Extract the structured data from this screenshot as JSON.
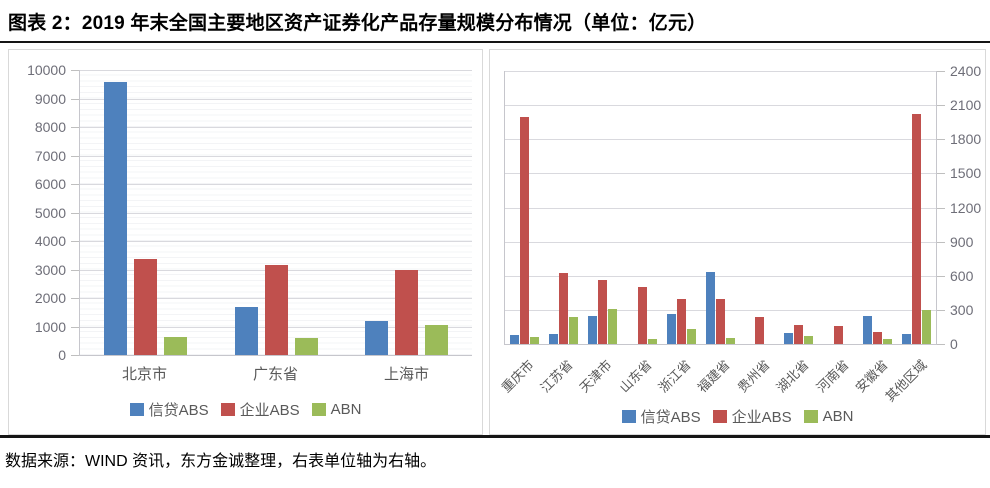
{
  "title": "图表 2：2019 年末全国主要地区资产证券化产品存量规模分布情况（单位：亿元）",
  "footer": "数据来源：WIND 资讯，东方金诚整理，右表单位轴为右轴。",
  "palette": {
    "credit_abs_blue": "#4E81BD",
    "enterprise_abs_red": "#C0504D",
    "abn_green": "#9BBB59",
    "axis_text": "#6E6E78",
    "category_text": "#595959",
    "gridline": "#D9D9DE",
    "divider_black": "#151515"
  },
  "chart_data": [
    {
      "type": "bar",
      "title": "",
      "axis_side": "left",
      "categories": [
        "北京市",
        "广东省",
        "上海市"
      ],
      "series": [
        {
          "key": "credit-abs",
          "name": "信贷ABS",
          "color": "#4E81BD",
          "values": [
            9580,
            1680,
            1180
          ]
        },
        {
          "key": "enterprise-abs",
          "name": "企业ABS",
          "color": "#C0504D",
          "values": [
            3370,
            3170,
            3000
          ]
        },
        {
          "key": "abn",
          "name": "ABN",
          "color": "#9BBB59",
          "values": [
            640,
            610,
            1040
          ]
        }
      ],
      "ylim": [
        0,
        10000
      ],
      "yticks": [
        0,
        1000,
        2000,
        3000,
        4000,
        5000,
        6000,
        7000,
        8000,
        9000,
        10000
      ],
      "grid": "horizontal-major-and-minor",
      "legend_position": "bottom",
      "xlabel": "",
      "ylabel": ""
    },
    {
      "type": "bar",
      "title": "",
      "axis_side": "right",
      "categories": [
        "重庆市",
        "江苏省",
        "天津市",
        "山东省",
        "浙江省",
        "福建省",
        "贵州省",
        "湖北省",
        "河南省",
        "安徽省",
        "其他区域"
      ],
      "series": [
        {
          "key": "credit-abs",
          "name": "信贷ABS",
          "color": "#4E81BD",
          "values": [
            80,
            90,
            245,
            0,
            265,
            630,
            0,
            95,
            0,
            250,
            90
          ]
        },
        {
          "key": "enterprise-abs",
          "name": "企业ABS",
          "color": "#C0504D",
          "values": [
            2000,
            620,
            565,
            505,
            400,
            400,
            240,
            165,
            155,
            110,
            2020
          ]
        },
        {
          "key": "abn",
          "name": "ABN",
          "color": "#9BBB59",
          "values": [
            60,
            235,
            305,
            40,
            135,
            50,
            0,
            70,
            0,
            40,
            300
          ]
        }
      ],
      "ylim": [
        0,
        2400
      ],
      "yticks": [
        0,
        300,
        600,
        900,
        1200,
        1500,
        1800,
        2100,
        2400
      ],
      "grid": "horizontal-major",
      "legend_position": "bottom",
      "xlabel": "",
      "ylabel": ""
    }
  ]
}
